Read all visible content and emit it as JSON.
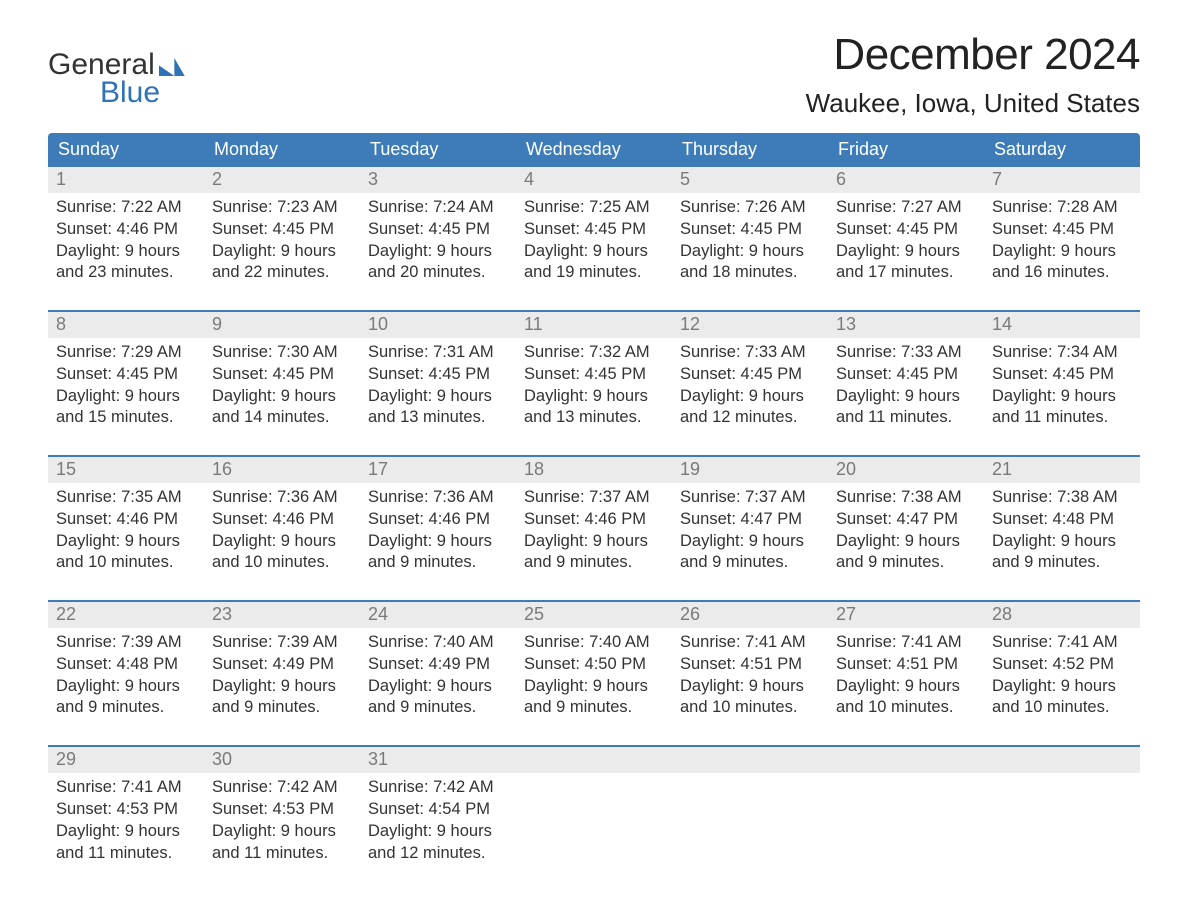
{
  "logo": {
    "word1": "General",
    "word2": "Blue"
  },
  "title": "December 2024",
  "location": "Waukee, Iowa, United States",
  "colors": {
    "header_bg": "#3d7cb8",
    "header_text": "#ffffff",
    "daynum_bg": "#ebebeb",
    "daynum_text": "#7a7a7a",
    "body_text": "#333333",
    "accent": "#2f72b6",
    "background": "#ffffff"
  },
  "typography": {
    "title_fontsize": 44,
    "location_fontsize": 26,
    "weekday_fontsize": 18,
    "daynum_fontsize": 18,
    "cell_fontsize": 16.5
  },
  "layout": {
    "columns": 7,
    "weeks": 5
  },
  "weekdays": [
    "Sunday",
    "Monday",
    "Tuesday",
    "Wednesday",
    "Thursday",
    "Friday",
    "Saturday"
  ],
  "days": [
    {
      "n": 1,
      "sunrise": "7:22 AM",
      "sunset": "4:46 PM",
      "daylight": "9 hours and 23 minutes."
    },
    {
      "n": 2,
      "sunrise": "7:23 AM",
      "sunset": "4:45 PM",
      "daylight": "9 hours and 22 minutes."
    },
    {
      "n": 3,
      "sunrise": "7:24 AM",
      "sunset": "4:45 PM",
      "daylight": "9 hours and 20 minutes."
    },
    {
      "n": 4,
      "sunrise": "7:25 AM",
      "sunset": "4:45 PM",
      "daylight": "9 hours and 19 minutes."
    },
    {
      "n": 5,
      "sunrise": "7:26 AM",
      "sunset": "4:45 PM",
      "daylight": "9 hours and 18 minutes."
    },
    {
      "n": 6,
      "sunrise": "7:27 AM",
      "sunset": "4:45 PM",
      "daylight": "9 hours and 17 minutes."
    },
    {
      "n": 7,
      "sunrise": "7:28 AM",
      "sunset": "4:45 PM",
      "daylight": "9 hours and 16 minutes."
    },
    {
      "n": 8,
      "sunrise": "7:29 AM",
      "sunset": "4:45 PM",
      "daylight": "9 hours and 15 minutes."
    },
    {
      "n": 9,
      "sunrise": "7:30 AM",
      "sunset": "4:45 PM",
      "daylight": "9 hours and 14 minutes."
    },
    {
      "n": 10,
      "sunrise": "7:31 AM",
      "sunset": "4:45 PM",
      "daylight": "9 hours and 13 minutes."
    },
    {
      "n": 11,
      "sunrise": "7:32 AM",
      "sunset": "4:45 PM",
      "daylight": "9 hours and 13 minutes."
    },
    {
      "n": 12,
      "sunrise": "7:33 AM",
      "sunset": "4:45 PM",
      "daylight": "9 hours and 12 minutes."
    },
    {
      "n": 13,
      "sunrise": "7:33 AM",
      "sunset": "4:45 PM",
      "daylight": "9 hours and 11 minutes."
    },
    {
      "n": 14,
      "sunrise": "7:34 AM",
      "sunset": "4:45 PM",
      "daylight": "9 hours and 11 minutes."
    },
    {
      "n": 15,
      "sunrise": "7:35 AM",
      "sunset": "4:46 PM",
      "daylight": "9 hours and 10 minutes."
    },
    {
      "n": 16,
      "sunrise": "7:36 AM",
      "sunset": "4:46 PM",
      "daylight": "9 hours and 10 minutes."
    },
    {
      "n": 17,
      "sunrise": "7:36 AM",
      "sunset": "4:46 PM",
      "daylight": "9 hours and 9 minutes."
    },
    {
      "n": 18,
      "sunrise": "7:37 AM",
      "sunset": "4:46 PM",
      "daylight": "9 hours and 9 minutes."
    },
    {
      "n": 19,
      "sunrise": "7:37 AM",
      "sunset": "4:47 PM",
      "daylight": "9 hours and 9 minutes."
    },
    {
      "n": 20,
      "sunrise": "7:38 AM",
      "sunset": "4:47 PM",
      "daylight": "9 hours and 9 minutes."
    },
    {
      "n": 21,
      "sunrise": "7:38 AM",
      "sunset": "4:48 PM",
      "daylight": "9 hours and 9 minutes."
    },
    {
      "n": 22,
      "sunrise": "7:39 AM",
      "sunset": "4:48 PM",
      "daylight": "9 hours and 9 minutes."
    },
    {
      "n": 23,
      "sunrise": "7:39 AM",
      "sunset": "4:49 PM",
      "daylight": "9 hours and 9 minutes."
    },
    {
      "n": 24,
      "sunrise": "7:40 AM",
      "sunset": "4:49 PM",
      "daylight": "9 hours and 9 minutes."
    },
    {
      "n": 25,
      "sunrise": "7:40 AM",
      "sunset": "4:50 PM",
      "daylight": "9 hours and 9 minutes."
    },
    {
      "n": 26,
      "sunrise": "7:41 AM",
      "sunset": "4:51 PM",
      "daylight": "9 hours and 10 minutes."
    },
    {
      "n": 27,
      "sunrise": "7:41 AM",
      "sunset": "4:51 PM",
      "daylight": "9 hours and 10 minutes."
    },
    {
      "n": 28,
      "sunrise": "7:41 AM",
      "sunset": "4:52 PM",
      "daylight": "9 hours and 10 minutes."
    },
    {
      "n": 29,
      "sunrise": "7:41 AM",
      "sunset": "4:53 PM",
      "daylight": "9 hours and 11 minutes."
    },
    {
      "n": 30,
      "sunrise": "7:42 AM",
      "sunset": "4:53 PM",
      "daylight": "9 hours and 11 minutes."
    },
    {
      "n": 31,
      "sunrise": "7:42 AM",
      "sunset": "4:54 PM",
      "daylight": "9 hours and 12 minutes."
    }
  ],
  "labels": {
    "sunrise": "Sunrise: ",
    "sunset": "Sunset: ",
    "daylight": "Daylight: "
  }
}
